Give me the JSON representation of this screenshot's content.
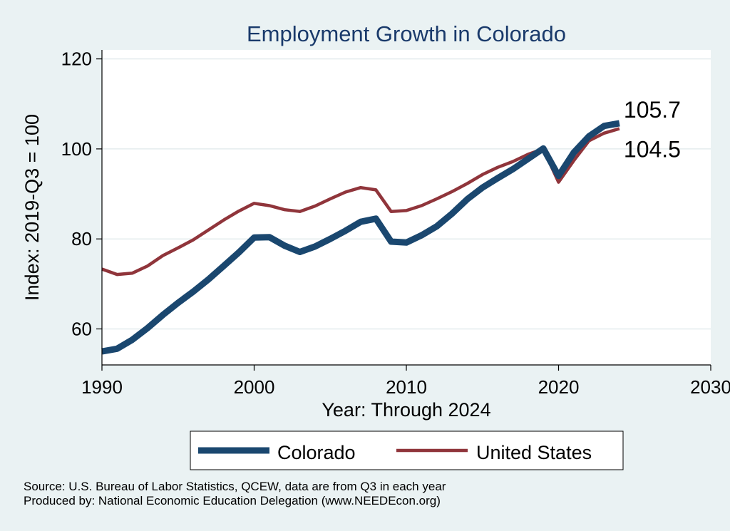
{
  "chart_data": {
    "type": "line",
    "title": "Employment Growth in Colorado",
    "xlabel": "Year: Through 2024",
    "ylabel": "Index: 2019-Q3 = 100",
    "xlim": [
      1990,
      2030
    ],
    "ylim": [
      52,
      122
    ],
    "xticks": [
      1990,
      2000,
      2010,
      2020,
      2030
    ],
    "yticks": [
      60,
      80,
      100,
      120
    ],
    "grid": true,
    "legend_position": "bottom",
    "x": [
      1990,
      1991,
      1992,
      1993,
      1994,
      1995,
      1996,
      1997,
      1998,
      1999,
      2000,
      2001,
      2002,
      2003,
      2004,
      2005,
      2006,
      2007,
      2008,
      2009,
      2010,
      2011,
      2012,
      2013,
      2014,
      2015,
      2016,
      2017,
      2018,
      2019,
      2020,
      2021,
      2022,
      2023,
      2024
    ],
    "series": [
      {
        "name": "Colorado",
        "color": "#1a476f",
        "width": 9,
        "end_label": "105.7",
        "values": [
          55.0,
          55.6,
          57.6,
          60.2,
          63.1,
          65.8,
          68.3,
          71.0,
          74.0,
          77.0,
          80.3,
          80.4,
          78.5,
          77.1,
          78.3,
          80.0,
          81.8,
          83.8,
          84.5,
          79.4,
          79.2,
          80.8,
          82.8,
          85.6,
          88.8,
          91.4,
          93.5,
          95.5,
          97.8,
          100.1,
          94.0,
          99.2,
          102.8,
          105.1,
          105.7
        ]
      },
      {
        "name": "United States",
        "color": "#90353b",
        "width": 4.5,
        "end_label": "104.5",
        "values": [
          73.3,
          72.1,
          72.4,
          74.0,
          76.3,
          78.0,
          79.8,
          82.0,
          84.2,
          86.2,
          87.9,
          87.4,
          86.5,
          86.1,
          87.3,
          88.9,
          90.4,
          91.4,
          90.9,
          86.1,
          86.3,
          87.4,
          88.9,
          90.5,
          92.3,
          94.3,
          95.9,
          97.2,
          98.8,
          100.0,
          92.6,
          97.4,
          101.8,
          103.5,
          104.5
        ]
      }
    ]
  },
  "notes": {
    "source": "Source: U.S. Bureau of Labor Statistics, QCEW, data are from Q3 in each year",
    "produced_by": "Produced by: National Economic Education Delegation (www.NEEDEcon.org)"
  }
}
